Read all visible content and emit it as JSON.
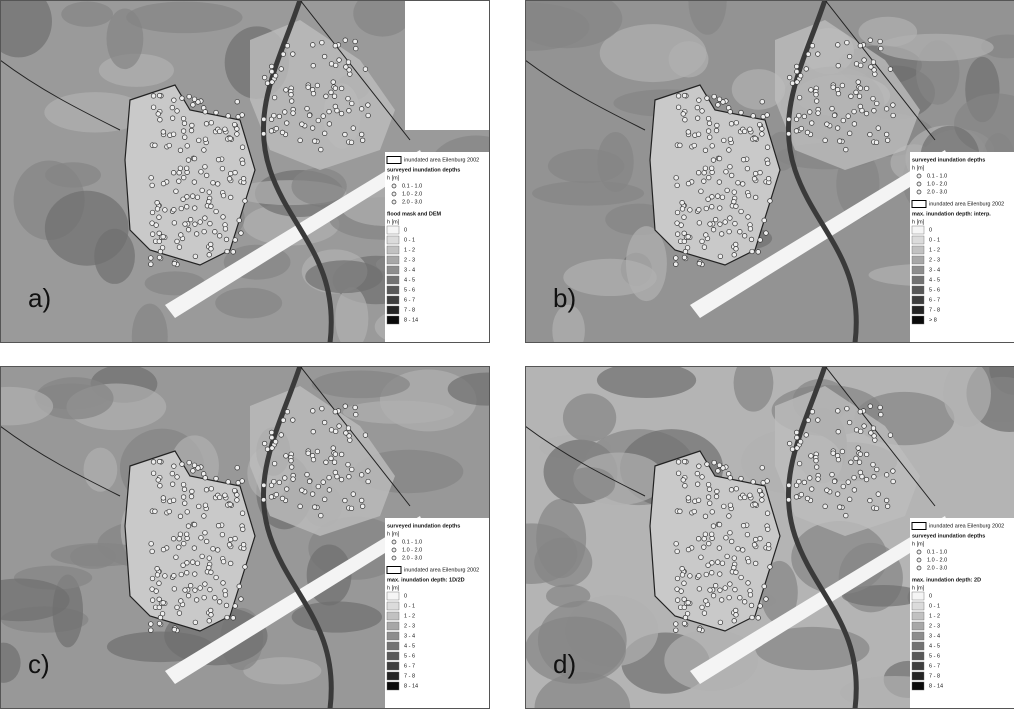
{
  "panels": [
    {
      "label": "a)",
      "legend": [
        {
          "area": "inundated area Eilenburg 2002"
        },
        {
          "title": "surveyed inundation depths",
          "unit": "h [m]",
          "points": [
            "0.1 - 1.0",
            "1.0 - 2.0",
            "2.0 - 3.0"
          ]
        },
        {
          "title": "flood mask and DEM",
          "unit": "h [m]",
          "classes": [
            "0",
            "0 - 1",
            "1 - 2",
            "2 - 3",
            "3 - 4",
            "4 - 5",
            "5 - 6",
            "6 - 7",
            "7 - 8",
            "8 - 14"
          ]
        }
      ]
    },
    {
      "label": "b)",
      "legend": [
        {
          "title": "surveyed inundation depths",
          "unit": "h [m]",
          "points": [
            "0.1 - 1.0",
            "1.0 - 2.0",
            "2.0 - 3.0"
          ]
        },
        {
          "area": "inundated area Eilenburg 2002"
        },
        {
          "title": "max. inundation depth: interp.",
          "unit": "h [m]",
          "classes": [
            "0",
            "0 - 1",
            "1 - 2",
            "2 - 3",
            "3 - 4",
            "4 - 5",
            "5 - 6",
            "6 - 7",
            "7 - 8",
            "> 8"
          ]
        }
      ]
    },
    {
      "label": "c)",
      "legend": [
        {
          "title": "surveyed inundation depths",
          "unit": "h [m]",
          "points": [
            "0.1 - 1.0",
            "1.0 - 2.0",
            "2.0 - 3.0"
          ]
        },
        {
          "area": "inundated area Eilenburg 2002"
        },
        {
          "title": "max. inundation depth: 1D/2D",
          "unit": "h [m]",
          "classes": [
            "0",
            "0 - 1",
            "1 - 2",
            "2 - 3",
            "3 - 4",
            "4 - 5",
            "5 - 6",
            "6 - 7",
            "7 - 8",
            "8 - 14"
          ]
        }
      ]
    },
    {
      "label": "d)",
      "legend": [
        {
          "area": "inundated area Eilenburg 2002"
        },
        {
          "title": "surveyed inundation depths",
          "unit": "h [m]",
          "points": [
            "0.1 - 1.0",
            "1.0 - 2.0",
            "2.0 - 3.0"
          ]
        },
        {
          "title": "max. inundation depth: 2D",
          "unit": "h [m]",
          "classes": [
            "0",
            "0 - 1",
            "1 - 2",
            "2 - 3",
            "3 - 4",
            "4 - 5",
            "5 - 6",
            "6 - 7",
            "7 - 8",
            "8 - 14"
          ]
        }
      ]
    }
  ]
}
